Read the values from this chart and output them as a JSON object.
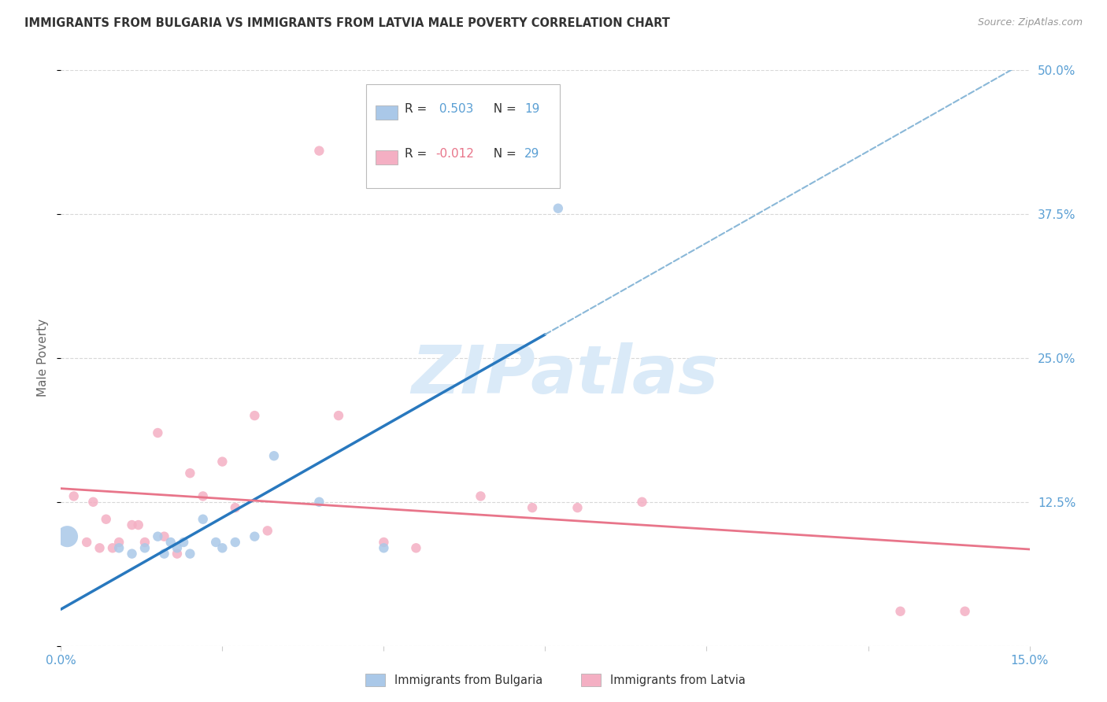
{
  "title": "IMMIGRANTS FROM BULGARIA VS IMMIGRANTS FROM LATVIA MALE POVERTY CORRELATION CHART",
  "source": "Source: ZipAtlas.com",
  "ylabel": "Male Poverty",
  "xlim": [
    0.0,
    0.15
  ],
  "ylim": [
    0.0,
    0.5
  ],
  "yticks": [
    0.0,
    0.125,
    0.25,
    0.375,
    0.5
  ],
  "ytick_labels": [
    "",
    "12.5%",
    "25.0%",
    "37.5%",
    "50.0%"
  ],
  "xtick_pos": [
    0.0,
    0.025,
    0.05,
    0.075,
    0.1,
    0.125,
    0.15
  ],
  "xtick_labels": [
    "0.0%",
    "",
    "",
    "",
    "",
    "",
    "15.0%"
  ],
  "bulgaria_color": "#aac8e8",
  "latvia_color": "#f4afc3",
  "bulgaria_line_color": "#2878be",
  "latvia_line_color": "#e8758a",
  "watermark_color": "#daeaf8",
  "bg_color": "#ffffff",
  "grid_color": "#d8d8d8",
  "tick_color": "#5a9fd4",
  "title_color": "#333333",
  "bulgaria_R": 0.503,
  "bulgaria_N": 19,
  "latvia_R": -0.012,
  "latvia_N": 29,
  "bx": [
    0.001,
    0.009,
    0.011,
    0.013,
    0.015,
    0.016,
    0.017,
    0.018,
    0.019,
    0.02,
    0.022,
    0.024,
    0.025,
    0.027,
    0.03,
    0.033,
    0.04,
    0.05,
    0.077
  ],
  "by": [
    0.095,
    0.085,
    0.08,
    0.085,
    0.095,
    0.08,
    0.09,
    0.085,
    0.09,
    0.08,
    0.11,
    0.09,
    0.085,
    0.09,
    0.095,
    0.165,
    0.125,
    0.085,
    0.38
  ],
  "bs": [
    380,
    80,
    80,
    80,
    80,
    80,
    80,
    80,
    80,
    80,
    80,
    80,
    80,
    80,
    80,
    80,
    80,
    80,
    80
  ],
  "lx": [
    0.002,
    0.004,
    0.005,
    0.006,
    0.007,
    0.008,
    0.009,
    0.011,
    0.012,
    0.013,
    0.015,
    0.016,
    0.018,
    0.02,
    0.022,
    0.025,
    0.027,
    0.03,
    0.032,
    0.04,
    0.043,
    0.05,
    0.055,
    0.065,
    0.073,
    0.08,
    0.09,
    0.13,
    0.14
  ],
  "ly": [
    0.13,
    0.09,
    0.125,
    0.085,
    0.11,
    0.085,
    0.09,
    0.105,
    0.105,
    0.09,
    0.185,
    0.095,
    0.08,
    0.15,
    0.13,
    0.16,
    0.12,
    0.2,
    0.1,
    0.43,
    0.2,
    0.09,
    0.085,
    0.13,
    0.12,
    0.12,
    0.125,
    0.03,
    0.03
  ],
  "ls": [
    80,
    80,
    80,
    80,
    80,
    80,
    80,
    80,
    80,
    80,
    80,
    80,
    80,
    80,
    80,
    80,
    80,
    80,
    80,
    80,
    80,
    80,
    80,
    80,
    80,
    80,
    80,
    80,
    80
  ]
}
